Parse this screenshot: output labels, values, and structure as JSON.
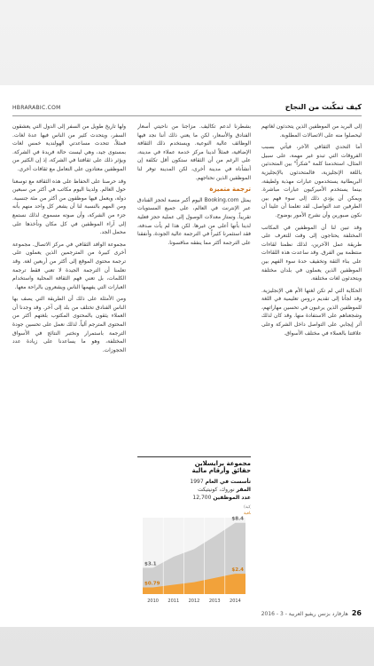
{
  "header": {
    "site": "HBRARABIC.COM",
    "title": "كيف تمكّنت من النجاح"
  },
  "columns": {
    "right": [
      "إلى البريد من الموظفين الذين يتحدثون لغاتهم ليحصلوا منه على الاتصالات المطلوبة.",
      "أما التحدي الثقافي الآخر، فيأتي بسبب الفروقات التي تبدو غير مهمة، على سبيل المثال، استخدمنا كلمة \"شكراً\" بين المتحدثين باللغة الإنجليزية، فالمتحدثون بالإنجليزية البريطانية يستخدمون عبارات مهذبة ولطيفة، بينما يستخدم الأميركيون عبارات مباشرة. ويمكن أن يؤدي ذلك إلى سوء فهم بين الطرفين عند التواصل. لقد تعلمنا أن علينا أن نكون صبورين وأن نشرح الأمور بوضوح.",
      "وقد تبين لنا أن الموظفين في المكاتب المختلفة يحتاجون إلى وقت للتعرف على طريقة عمل الآخرين، لذلك نظمنا لقاءات منتظمة بين الفرق. وقد ساعدت هذه اللقاءات على بناء الثقة وتخفيف حدة سوء الفهم بين الموظفين الذين يعملون في بلدان مختلفة ويتحدثون لغات مختلفة.",
      "الحكاية التي لم تكن لغتها الأم هي الإنجليزية. وقد لجأنا إلى تقديم دروس تعليمية في اللغة للموظفين الذين يرغبون في تحسين مهاراتهم، وشجعناهم على الاستفادة منها. وقد كان لذلك أثر إيجابي على التواصل داخل الشركة وعلى علاقتنا بالعملاء في مختلف الأسواق."
    ],
    "middle": [
      "بشطرنا لدعم تكاليف. مزاجنا من ناحيتي أسعار الفنادق والأسعار، لكن ما يعني ذلك أننا نجد فيها الوظائف عالية النوعية. ويستخدم ذلك الثقافة الإضافية، فمثلاً لدينا مركز خدمة عملاء في مدينة، على الرغم من أن الثقافة ستكون أقل تكلفة إن أنشأناه في مدينة أخرى، لكن المدينة توفر لنا الموظفين الذين نحتاجهم."
    ],
    "middle_heading": "ترجمة متميزة",
    "middle_after": [
      "يمثل Booking.com اليوم أكبر منصة لحجز الفنادق عبر الإنترنت في العالم، على جميع المستويات تقريباً. وتمتاز معدلات الوصول إلى عملية حجز فعلية لدينا بأنها أعلى من غيرها. لكن هذا لم يأت صدفة، فقد استثمرنا كثيراً في الترجمة عالية الجودة، وأنفقنا على الترجمة أكثر مما ينفقه منافسونا."
    ],
    "left": [
      "ولها تاريخ طويل من السفر إلى الدول التي يعشقون السفر، ويتحدث كثير من الناس فيها عدة لغات. فمثلاً، تتحدث مساعدتي الهولندية خمس لغات بمستوى جيد، وهي ليست حالة فريدة في الشركة. ويؤثر ذلك على ثقافتنا في الشركة، إذ إن الكثير من الموظفين معتادون على التعامل مع ثقافات أخرى.",
      "وقد حرصنا على الحفاظ على هذه الثقافة مع توسعنا حول العالم. ولدينا اليوم مكاتب في أكثر من سبعين دولة، ويعمل فيها موظفون من أكثر من مئة جنسية. ومن المهم بالنسبة لنا أن يشعر كل واحد منهم بأنه جزء من الشركة، وأن صوته مسموع. لذلك نستمع إلى آراء الموظفين في كل مكان ونأخذها على محمل الجد.",
      "مجموعة الوافد الثقافي في مركز الاتصال. مجموعة أخرى كبيرة من المترجمين الذين يعملون على ترجمة محتوى الموقع إلى أكثر من أربعين لغة. وقد تعلمنا أن الترجمة الجيدة لا تعني فقط ترجمة الكلمات، بل تعني فهم الثقافة المحلية واستخدام العبارات التي يفهمها الناس ويشعرون بالراحة معها.",
      "ومن الأمثلة على ذلك أن الطريقة التي يصف بها الناس الفنادق تختلف من بلد إلى آخر. وقد وجدنا أن العملاء يثقون بالمحتوى المكتوب بلغتهم أكثر من المحتوى المترجم آلياً. لذلك نعمل على تحسين جودة الترجمة باستمرار ونختبر النتائج في الأسواق المختلفة، وهو ما يساعدنا على زيادة عدد الحجوزات."
    ]
  },
  "sidebar": {
    "title": "مجموعة برايسلاين",
    "subtitle": "حقائق وأرقام مالية",
    "facts": [
      {
        "label": "تأسست في العام",
        "value": "1997"
      },
      {
        "label": "المقر",
        "value": "نوروك، كونيتيكت"
      },
      {
        "label": "عدد الموظفين",
        "value": "12,700"
      }
    ],
    "chart": {
      "type": "area",
      "categories": [
        "2010",
        "2011",
        "2012",
        "2013",
        "2014"
      ],
      "ylim": [
        0,
        9
      ],
      "series": [
        {
          "name": "الإيرادات (مليارات الدولارات الأميركية)",
          "color": "#cfcfcf",
          "values": [
            3.1,
            4.4,
            5.3,
            6.8,
            8.4
          ],
          "value_labels": [
            "$3.1",
            null,
            null,
            null,
            "$8.4"
          ]
        },
        {
          "name": "الإيرادات الصافية",
          "color": "#f2a23a",
          "values": [
            0.79,
            1.1,
            1.4,
            1.9,
            2.4
          ],
          "value_labels": [
            "$0.79",
            null,
            null,
            null,
            "$2.4"
          ]
        }
      ]
    }
  },
  "footer": {
    "page": "26",
    "magazine": "هارفارد بزنس ريفيو العربية - 3 - 2016"
  }
}
